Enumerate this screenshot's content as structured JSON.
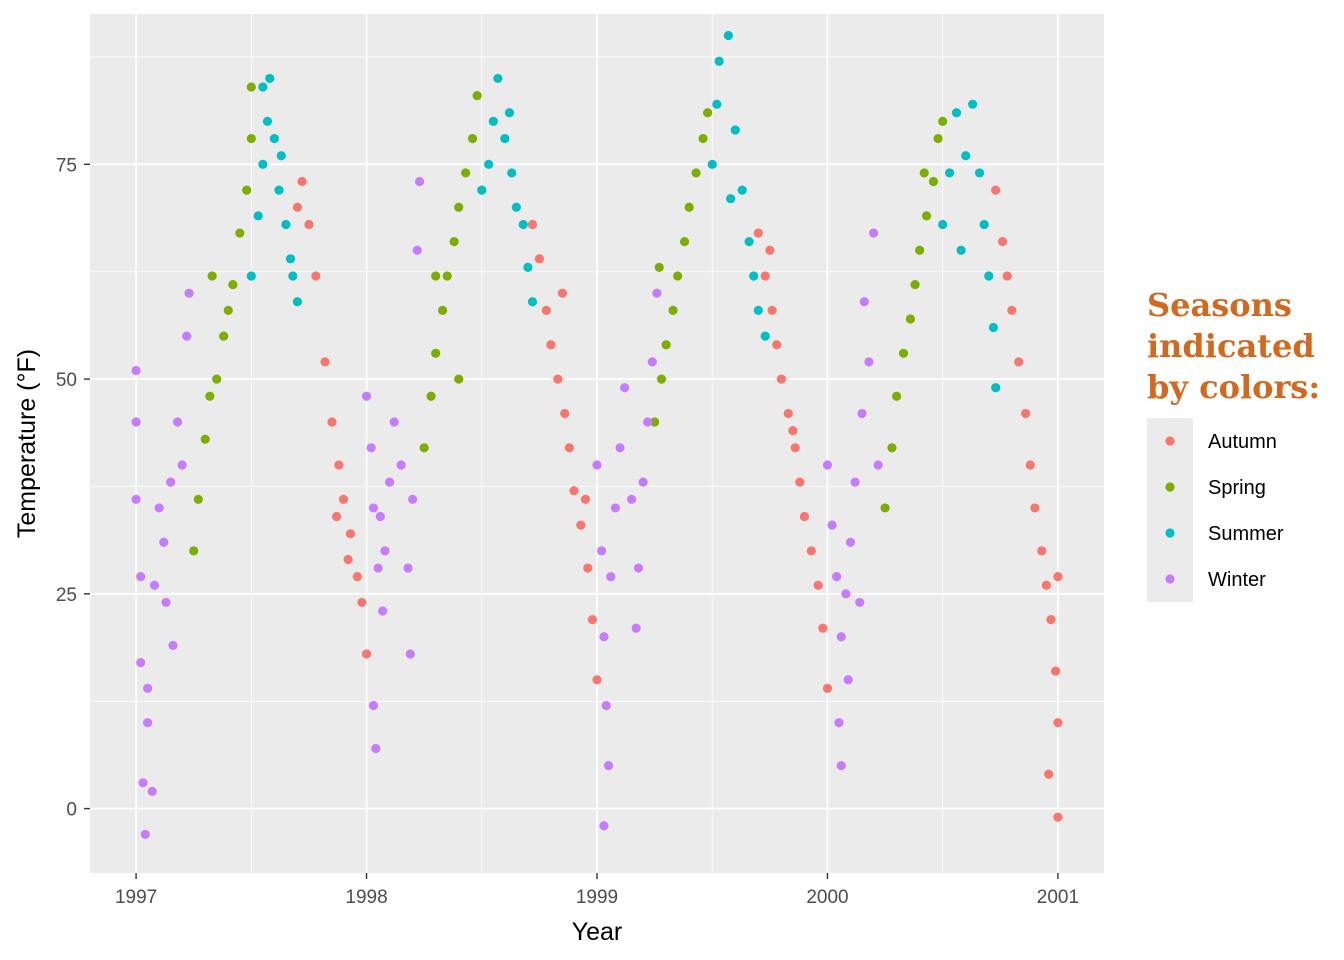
{
  "chart_data": {
    "type": "scatter",
    "xlabel": "Year",
    "ylabel": "Temperature (°F)",
    "x_ticks": [
      "1997",
      "1998",
      "1999",
      "2000",
      "2001"
    ],
    "y_ticks": [
      "0",
      "25",
      "50",
      "75"
    ],
    "xlim": [
      1996.8,
      2001.2
    ],
    "ylim": [
      -7.5,
      92.5
    ],
    "grid": true,
    "panel_background": "#ebebeb",
    "legend": {
      "title_lines": [
        "Seasons",
        "indicated",
        "by colors:"
      ],
      "placement": "right",
      "title_color": "#d2691e"
    },
    "series": [
      {
        "name": "Autumn",
        "color": "#f8766d",
        "points": [
          [
            1997.7,
            70
          ],
          [
            1997.72,
            73
          ],
          [
            1997.75,
            68
          ],
          [
            1997.78,
            62
          ],
          [
            1997.82,
            52
          ],
          [
            1997.85,
            45
          ],
          [
            1997.88,
            40
          ],
          [
            1997.9,
            36
          ],
          [
            1997.93,
            32
          ],
          [
            1997.96,
            27
          ],
          [
            1997.98,
            24
          ],
          [
            1998.0,
            18
          ],
          [
            1997.87,
            34
          ],
          [
            1997.92,
            29
          ],
          [
            1998.72,
            68
          ],
          [
            1998.75,
            64
          ],
          [
            1998.78,
            58
          ],
          [
            1998.8,
            54
          ],
          [
            1998.83,
            50
          ],
          [
            1998.86,
            46
          ],
          [
            1998.88,
            42
          ],
          [
            1998.9,
            37
          ],
          [
            1998.93,
            33
          ],
          [
            1998.96,
            28
          ],
          [
            1998.98,
            22
          ],
          [
            1999.0,
            15
          ],
          [
            1998.95,
            36
          ],
          [
            1998.85,
            60
          ],
          [
            1999.7,
            67
          ],
          [
            1999.73,
            62
          ],
          [
            1999.76,
            58
          ],
          [
            1999.78,
            54
          ],
          [
            1999.8,
            50
          ],
          [
            1999.83,
            46
          ],
          [
            1999.86,
            42
          ],
          [
            1999.88,
            38
          ],
          [
            1999.9,
            34
          ],
          [
            1999.93,
            30
          ],
          [
            1999.96,
            26
          ],
          [
            1999.98,
            21
          ],
          [
            2000.0,
            14
          ],
          [
            1999.75,
            65
          ],
          [
            1999.85,
            44
          ],
          [
            2000.73,
            72
          ],
          [
            2000.76,
            66
          ],
          [
            2000.78,
            62
          ],
          [
            2000.8,
            58
          ],
          [
            2000.83,
            52
          ],
          [
            2000.86,
            46
          ],
          [
            2000.88,
            40
          ],
          [
            2000.9,
            35
          ],
          [
            2000.93,
            30
          ],
          [
            2000.95,
            26
          ],
          [
            2000.97,
            22
          ],
          [
            2000.99,
            16
          ],
          [
            2001.0,
            10
          ],
          [
            2001.0,
            27
          ],
          [
            2000.96,
            4
          ],
          [
            2001.0,
            -1
          ]
        ]
      },
      {
        "name": "Spring",
        "color": "#7cae00",
        "points": [
          [
            1997.25,
            30
          ],
          [
            1997.27,
            36
          ],
          [
            1997.3,
            43
          ],
          [
            1997.32,
            48
          ],
          [
            1997.35,
            50
          ],
          [
            1997.38,
            55
          ],
          [
            1997.4,
            58
          ],
          [
            1997.42,
            61
          ],
          [
            1997.45,
            67
          ],
          [
            1997.48,
            72
          ],
          [
            1997.5,
            78
          ],
          [
            1997.5,
            84
          ],
          [
            1997.33,
            62
          ],
          [
            1998.25,
            42
          ],
          [
            1998.28,
            48
          ],
          [
            1998.3,
            53
          ],
          [
            1998.33,
            58
          ],
          [
            1998.35,
            62
          ],
          [
            1998.38,
            66
          ],
          [
            1998.4,
            70
          ],
          [
            1998.43,
            74
          ],
          [
            1998.46,
            78
          ],
          [
            1998.48,
            83
          ],
          [
            1998.3,
            62
          ],
          [
            1998.4,
            50
          ],
          [
            1999.25,
            45
          ],
          [
            1999.28,
            50
          ],
          [
            1999.3,
            54
          ],
          [
            1999.33,
            58
          ],
          [
            1999.35,
            62
          ],
          [
            1999.38,
            66
          ],
          [
            1999.4,
            70
          ],
          [
            1999.43,
            74
          ],
          [
            1999.46,
            78
          ],
          [
            1999.48,
            81
          ],
          [
            1999.27,
            63
          ],
          [
            2000.25,
            35
          ],
          [
            2000.28,
            42
          ],
          [
            2000.3,
            48
          ],
          [
            2000.33,
            53
          ],
          [
            2000.36,
            57
          ],
          [
            2000.38,
            61
          ],
          [
            2000.4,
            65
          ],
          [
            2000.43,
            69
          ],
          [
            2000.46,
            73
          ],
          [
            2000.48,
            78
          ],
          [
            2000.5,
            80
          ],
          [
            2000.42,
            74
          ]
        ]
      },
      {
        "name": "Summer",
        "color": "#00bfc4",
        "points": [
          [
            1997.5,
            62
          ],
          [
            1997.53,
            69
          ],
          [
            1997.55,
            75
          ],
          [
            1997.57,
            80
          ],
          [
            1997.58,
            85
          ],
          [
            1997.6,
            78
          ],
          [
            1997.62,
            72
          ],
          [
            1997.65,
            68
          ],
          [
            1997.67,
            64
          ],
          [
            1997.7,
            59
          ],
          [
            1997.55,
            84
          ],
          [
            1997.63,
            76
          ],
          [
            1997.68,
            62
          ],
          [
            1998.5,
            72
          ],
          [
            1998.53,
            75
          ],
          [
            1998.55,
            80
          ],
          [
            1998.57,
            85
          ],
          [
            1998.6,
            78
          ],
          [
            1998.63,
            74
          ],
          [
            1998.65,
            70
          ],
          [
            1998.68,
            68
          ],
          [
            1998.7,
            63
          ],
          [
            1998.72,
            59
          ],
          [
            1998.62,
            81
          ],
          [
            1999.5,
            75
          ],
          [
            1999.52,
            82
          ],
          [
            1999.53,
            87
          ],
          [
            1999.57,
            90
          ],
          [
            1999.6,
            79
          ],
          [
            1999.63,
            72
          ],
          [
            1999.66,
            66
          ],
          [
            1999.68,
            62
          ],
          [
            1999.7,
            58
          ],
          [
            1999.73,
            55
          ],
          [
            1999.58,
            71
          ],
          [
            2000.5,
            68
          ],
          [
            2000.53,
            74
          ],
          [
            2000.56,
            81
          ],
          [
            2000.6,
            76
          ],
          [
            2000.63,
            82
          ],
          [
            2000.66,
            74
          ],
          [
            2000.68,
            68
          ],
          [
            2000.7,
            62
          ],
          [
            2000.72,
            56
          ],
          [
            2000.73,
            49
          ],
          [
            2000.58,
            65
          ]
        ]
      },
      {
        "name": "Winter",
        "color": "#c77cff",
        "points": [
          [
            1997.0,
            45
          ],
          [
            1997.0,
            51
          ],
          [
            1997.0,
            36
          ],
          [
            1997.02,
            27
          ],
          [
            1997.02,
            17
          ],
          [
            1997.03,
            3
          ],
          [
            1997.04,
            -3
          ],
          [
            1997.05,
            10
          ],
          [
            1997.07,
            2
          ],
          [
            1997.08,
            26
          ],
          [
            1997.1,
            35
          ],
          [
            1997.12,
            31
          ],
          [
            1997.13,
            24
          ],
          [
            1997.15,
            38
          ],
          [
            1997.18,
            45
          ],
          [
            1997.2,
            40
          ],
          [
            1997.22,
            55
          ],
          [
            1997.23,
            60
          ],
          [
            1997.16,
            19
          ],
          [
            1997.05,
            14
          ],
          [
            1998.0,
            48
          ],
          [
            1998.02,
            42
          ],
          [
            1998.03,
            35
          ],
          [
            1998.05,
            28
          ],
          [
            1998.07,
            23
          ],
          [
            1998.08,
            30
          ],
          [
            1998.1,
            38
          ],
          [
            1998.12,
            45
          ],
          [
            1998.15,
            40
          ],
          [
            1998.18,
            28
          ],
          [
            1998.2,
            36
          ],
          [
            1998.22,
            65
          ],
          [
            1998.23,
            73
          ],
          [
            1998.03,
            12
          ],
          [
            1998.04,
            7
          ],
          [
            1998.19,
            18
          ],
          [
            1998.06,
            34
          ],
          [
            1999.0,
            40
          ],
          [
            1999.02,
            30
          ],
          [
            1999.03,
            20
          ],
          [
            1999.04,
            12
          ],
          [
            1999.05,
            5
          ],
          [
            1999.03,
            -2
          ],
          [
            1999.06,
            27
          ],
          [
            1999.08,
            35
          ],
          [
            1999.1,
            42
          ],
          [
            1999.12,
            49
          ],
          [
            1999.15,
            36
          ],
          [
            1999.18,
            28
          ],
          [
            1999.2,
            38
          ],
          [
            1999.22,
            45
          ],
          [
            1999.24,
            52
          ],
          [
            1999.26,
            60
          ],
          [
            1999.17,
            21
          ],
          [
            2000.0,
            40
          ],
          [
            2000.02,
            33
          ],
          [
            2000.04,
            27
          ],
          [
            2000.06,
            20
          ],
          [
            2000.05,
            10
          ],
          [
            2000.06,
            5
          ],
          [
            2000.08,
            25
          ],
          [
            2000.1,
            31
          ],
          [
            2000.12,
            38
          ],
          [
            2000.15,
            46
          ],
          [
            2000.18,
            52
          ],
          [
            2000.16,
            59
          ],
          [
            2000.2,
            67
          ],
          [
            2000.22,
            40
          ],
          [
            2000.14,
            24
          ],
          [
            2000.09,
            15
          ]
        ]
      }
    ]
  }
}
